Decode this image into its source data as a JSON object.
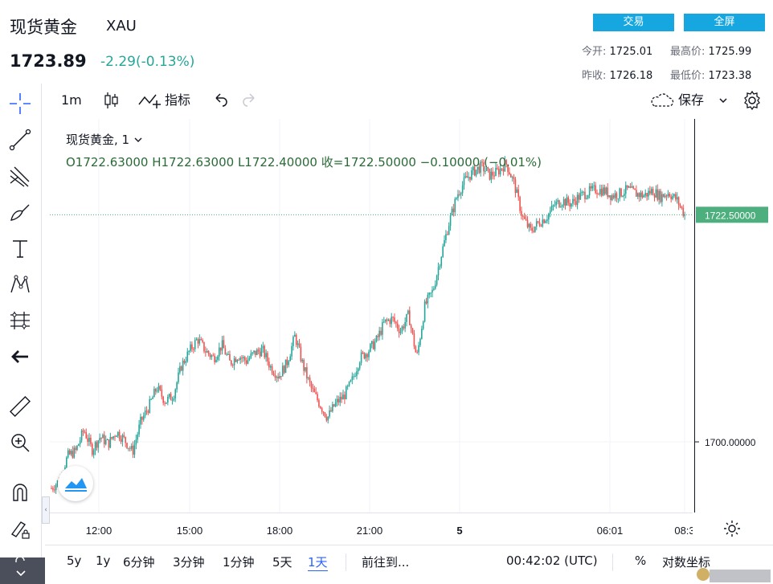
{
  "header": {
    "title": "现货黄金",
    "symbol": "XAU",
    "price": "1723.89",
    "change": "-2.29(-0.13%)",
    "trade_btn": "交易",
    "fullscreen_btn": "全屏",
    "open_label": "今开:",
    "open_value": "1725.01",
    "high_label": "最高价:",
    "high_value": "1725.99",
    "prev_label": "昨收:",
    "prev_value": "1726.18",
    "low_label": "最低价:",
    "low_value": "1723.38"
  },
  "toolbar": {
    "interval": "1m",
    "indicators": "指标",
    "save": "保存"
  },
  "legend": {
    "symbol_line": "现货黄金, 1",
    "ohlc": "O1722.63000   H1722.63000   L1722.40000   收=1722.50000   −0.10000 (−0.01%)"
  },
  "price_axis": {
    "last_price_label": "1722.50000",
    "tick_1700": "1700.00000"
  },
  "time_axis": {
    "ticks": [
      "12:00",
      "15:00",
      "18:00",
      "21:00",
      "5",
      "06:01",
      "08:3"
    ]
  },
  "bottom_bar": {
    "ranges": [
      "5y",
      "1y",
      "6分钟",
      "3分钟",
      "1分钟",
      "5天",
      "1天"
    ],
    "goto": "前往到...",
    "clock": "00:42:02 (UTC)",
    "percent": "%",
    "log": "对数坐标"
  },
  "colors": {
    "up": "#26a69a",
    "down": "#ef5350",
    "accent": "#17a7e0",
    "last_price": "#4caf7d"
  },
  "chart_data": {
    "type": "line",
    "title": "现货黄金, 1",
    "ylim": [
      1693,
      1732
    ],
    "series": [
      {
        "values": [
          1695.4,
          1696.2,
          1698.6,
          1699.1,
          1701.2,
          1699.2,
          1700.5,
          1699.8,
          1701.0,
          1700.2,
          1699.0,
          1702.0,
          1703.5,
          1705.4,
          1704.0,
          1704.6,
          1707.5,
          1709.0,
          1710.2,
          1709.0,
          1708.3,
          1709.6,
          1707.8,
          1708.6,
          1708.0,
          1708.8,
          1709.1,
          1707.4,
          1706.5,
          1707.8,
          1710.5,
          1707.5,
          1705.3,
          1703.8,
          1702.4,
          1703.8,
          1704.5,
          1706.0,
          1708.3,
          1709.0,
          1710.0,
          1711.8,
          1712.2,
          1711.0,
          1712.6,
          1708.3,
          1713.5,
          1715.0,
          1718.5,
          1721.8,
          1724.5,
          1726.0,
          1726.8,
          1727.3,
          1726.4,
          1726.8,
          1727.6,
          1725.6,
          1722.3,
          1720.9,
          1721.7,
          1722.3,
          1723.5,
          1723.9,
          1723.6,
          1724.3,
          1724.7,
          1725.0,
          1724.9,
          1724.4,
          1724.6,
          1725.0,
          1724.6,
          1724.4,
          1724.9,
          1724.3,
          1724.7,
          1724.0,
          1722.5
        ]
      }
    ]
  }
}
